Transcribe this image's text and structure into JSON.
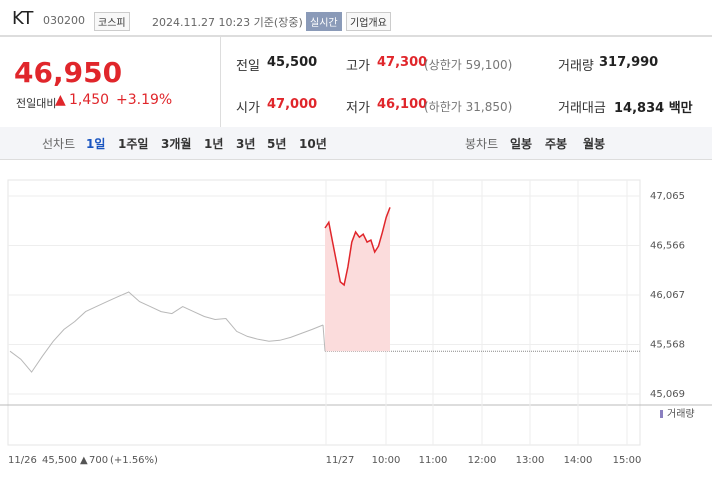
{
  "header": {
    "name": "KT",
    "code": "030200",
    "market": "코스피",
    "time": "2024.11.27 10:23 기준(장중)",
    "realtime": "실시간",
    "company": "기업개요"
  },
  "quote": {
    "price": "46,950",
    "change_label": "전일대비",
    "change": "1,450",
    "rate": "+3.19%"
  },
  "stats": [
    [
      {
        "label": "전일",
        "value": "45,500"
      },
      {
        "label": "고가",
        "value": "47,300",
        "extra": "(상한가 59,100)"
      },
      {
        "label": "거래량",
        "value": "317,990"
      }
    ],
    [
      {
        "label": "시가",
        "value": "47,000"
      },
      {
        "label": "저가",
        "value": "46,100",
        "extra": "(하한가 31,850)"
      },
      {
        "label": "거래대금",
        "value": "14,834 백만"
      }
    ]
  ],
  "tabs": {
    "line_title": "선차트",
    "line": [
      "1일",
      "1주일",
      "3개월",
      "1년",
      "3년",
      "5년",
      "10년"
    ],
    "candle_title": "봉차트",
    "candle": [
      "일봉",
      "주봉",
      "월봉"
    ]
  },
  "chart_data": {
    "type": "line",
    "volume_label": "거래량",
    "x_labels": [
      "11/27",
      "10:00",
      "11:00",
      "12:00",
      "13:00",
      "14:00",
      "15:00"
    ],
    "baseline": 45500,
    "series": [
      {
        "name": "11/26",
        "color": "#b8b8b8",
        "values": [
          45500,
          45420,
          45290,
          45450,
          45600,
          45720,
          45800,
          45900,
          45950,
          46000,
          46050,
          46097,
          46000,
          45950,
          45900,
          45880,
          45950,
          45900,
          45850,
          45820,
          45830,
          45700,
          45650,
          45620,
          45600,
          45610,
          45640,
          45680,
          45720,
          45765
        ]
      },
      {
        "name": "11/27",
        "color": "#e0262b",
        "values": [
          46742,
          46800,
          46600,
          46400,
          46200,
          46168,
          46350,
          46600,
          46702,
          46650,
          46680,
          46600,
          46620,
          46500,
          46560,
          46700,
          46850,
          46950
        ]
      }
    ],
    "ylim": [
      45069,
      47065
    ],
    "yticks": [
      {
        "value": 47065,
        "label": "47,065"
      },
      {
        "value": 46566,
        "label": "46,566"
      },
      {
        "value": 46067,
        "label": "46,067"
      },
      {
        "value": 45568,
        "label": "45,568"
      },
      {
        "value": 45069,
        "label": "45,069"
      }
    ],
    "legend_note": {
      "date": "11/26",
      "price": "45,500",
      "change": "700",
      "rate": "(+1.56%)"
    }
  }
}
